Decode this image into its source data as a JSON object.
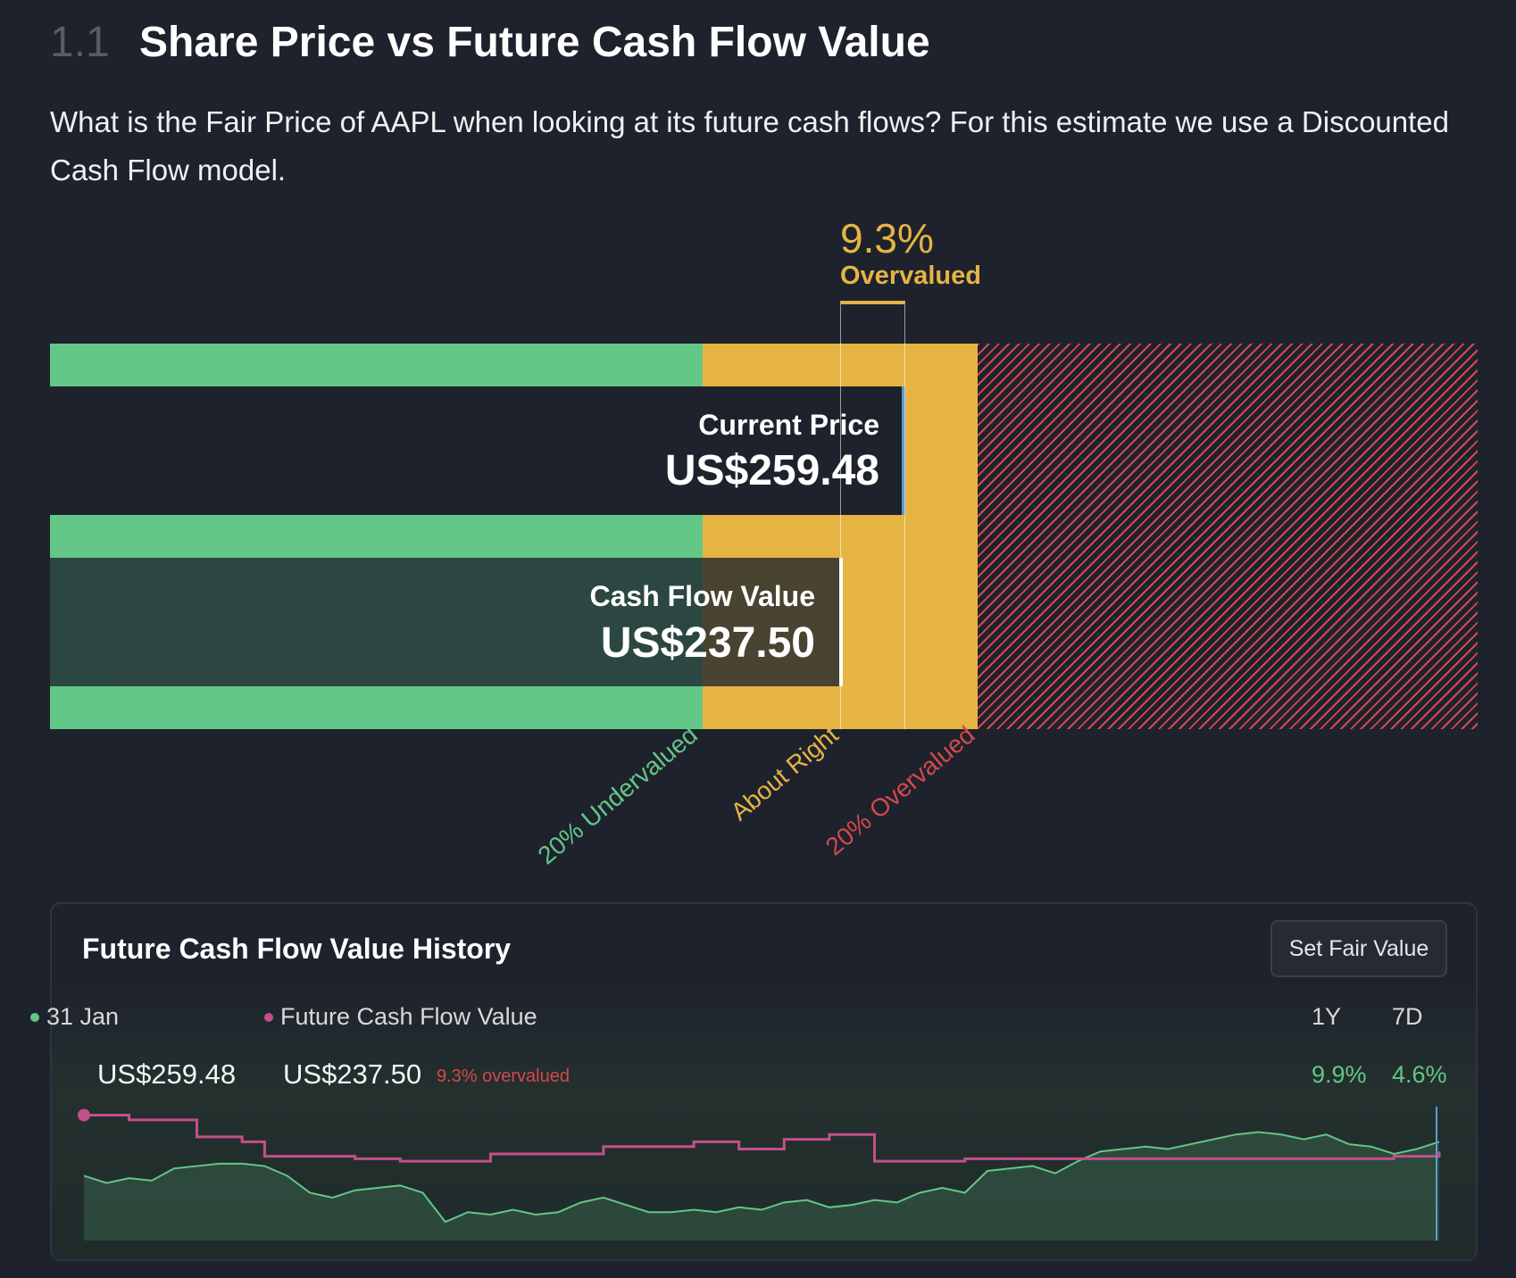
{
  "header": {
    "section_number": "1.1",
    "title": "Share Price vs Future Cash Flow Value",
    "description": "What is the Fair Price of AAPL when looking at its future cash flows? For this estimate we use a Discounted Cash Flow model."
  },
  "valuation": {
    "difference_pct": "9.3%",
    "difference_label": "Overvalued",
    "current_price_label": "Current Price",
    "current_price": "US$259.48",
    "cash_flow_label": "Cash Flow Value",
    "cash_flow_value": "US$237.50",
    "zones": [
      "20% Undervalued",
      "About Right",
      "20% Overvalued"
    ],
    "colors": {
      "undervalued": "#62c787",
      "about_right": "#e5b443",
      "overvalued": "#d4494c",
      "price_marker": "#5b9bd5"
    }
  },
  "history": {
    "title": "Future Cash Flow Value History",
    "set_fair_value_button": "Set Fair Value",
    "legend_date": "31 Jan",
    "legend_fcf": "Future Cash Flow Value",
    "price": "US$259.48",
    "fcf": "US$237.50",
    "fcf_status": "9.3% overvalued",
    "periods": [
      {
        "label": "1Y",
        "return": "9.9%"
      },
      {
        "label": "7D",
        "return": "4.6%"
      }
    ]
  },
  "chart_data": {
    "type": "line",
    "xlabel": "",
    "ylabel": "",
    "series": [
      {
        "color": "#62c787",
        "values": [
          219,
          216,
          218,
          217,
          222,
          223,
          224,
          224,
          223,
          219,
          212,
          210,
          213,
          214,
          215,
          212,
          200,
          204,
          203,
          205,
          203,
          204,
          208,
          210,
          207,
          204,
          204,
          205,
          204,
          206,
          205,
          208,
          209,
          206,
          207,
          209,
          208,
          212,
          214,
          212,
          221,
          222,
          223,
          220,
          225,
          229,
          230,
          231,
          230,
          232,
          234,
          236,
          237,
          236,
          234,
          236,
          232,
          231,
          228,
          230,
          233
        ]
      },
      {
        "color": "#c44f8c",
        "values": [
          244,
          244,
          242,
          242,
          242,
          235,
          235,
          233,
          227,
          227,
          227,
          227,
          226,
          226,
          225,
          225,
          225,
          225,
          228,
          228,
          228,
          228,
          228,
          231,
          231,
          231,
          231,
          233,
          233,
          230,
          230,
          234,
          234,
          236,
          236,
          225,
          225,
          225,
          225,
          226,
          226,
          226,
          226,
          226,
          226,
          226,
          226,
          226,
          226,
          226,
          226,
          226,
          226,
          226,
          226,
          226,
          226,
          226,
          227,
          227,
          229
        ]
      }
    ]
  }
}
